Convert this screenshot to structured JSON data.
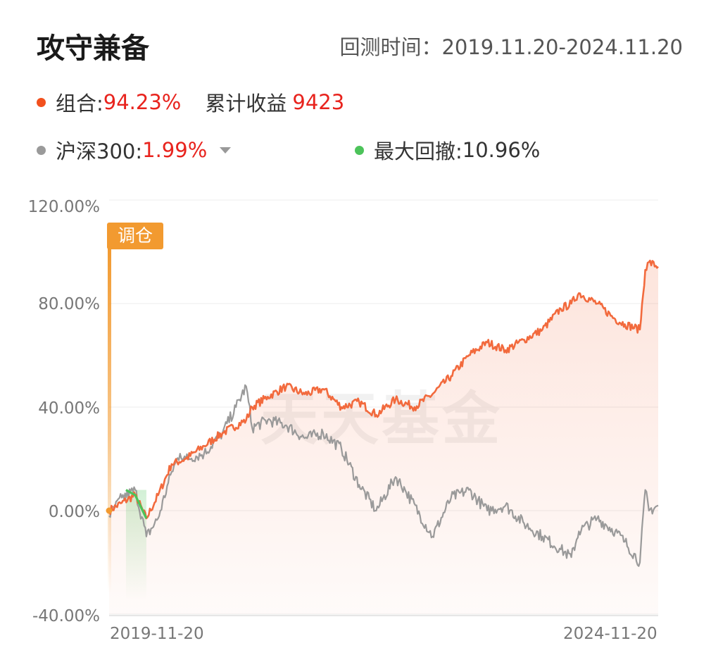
{
  "header": {
    "title": "攻守兼备",
    "period_label": "回测时间：2019.11.20-2024.11.20"
  },
  "legend": {
    "portfolio_label": "组合:",
    "portfolio_value": "94.23%",
    "cumulative_label": "累计收益",
    "cumulative_value": "9423",
    "benchmark_label": "沪深300:",
    "benchmark_value": "1.99%",
    "drawdown_label": "最大回撤:",
    "drawdown_value": "10.96%"
  },
  "colors": {
    "portfolio": "#f26a3d",
    "benchmark": "#9a9a9a",
    "drawdown": "#4cc35a",
    "rebalance": "#f29a30",
    "value_red": "#e8231d"
  },
  "badge_label": "调仓",
  "watermark": "天天基金",
  "chart_data": {
    "type": "line",
    "x_start": "2019-11-20",
    "x_end": "2024-11-20",
    "xticks": [
      "2019-11-20",
      "2024-11-20"
    ],
    "ylim": [
      -40,
      120
    ],
    "yticks": [
      120,
      80,
      40,
      0,
      -40
    ],
    "ytick_labels": [
      "120.00%",
      "80.00%",
      "40.00%",
      "0.00%",
      "-40.00%"
    ],
    "grid": true,
    "series": [
      {
        "name": "组合",
        "x": [
          "2019-11-20",
          "2020-01-01",
          "2020-02-15",
          "2020-03-23",
          "2020-05-01",
          "2020-06-15",
          "2020-08-01",
          "2020-10-01",
          "2020-12-01",
          "2021-02-18",
          "2021-03-10",
          "2021-05-01",
          "2021-07-01",
          "2021-09-01",
          "2021-11-01",
          "2022-01-01",
          "2022-03-01",
          "2022-04-27",
          "2022-06-30",
          "2022-09-01",
          "2022-10-31",
          "2023-01-01",
          "2023-03-01",
          "2023-05-01",
          "2023-07-01",
          "2023-09-01",
          "2023-11-01",
          "2024-01-01",
          "2024-02-05",
          "2024-03-01",
          "2024-05-01",
          "2024-06-30",
          "2024-08-01",
          "2024-09-20",
          "2024-10-08",
          "2024-10-20",
          "2024-11-20"
        ],
        "values": [
          0,
          3,
          6,
          -3,
          6,
          18,
          20,
          25,
          30,
          35,
          40,
          44,
          48,
          45,
          47,
          40,
          42,
          37,
          43,
          40,
          45,
          52,
          60,
          65,
          62,
          66,
          70,
          78,
          80,
          84,
          80,
          74,
          72,
          70,
          93,
          96,
          94.23
        ]
      },
      {
        "name": "沪深300",
        "x": [
          "2019-11-20",
          "2020-01-01",
          "2020-02-15",
          "2020-03-23",
          "2020-05-01",
          "2020-06-15",
          "2020-07-13",
          "2020-08-01",
          "2020-10-01",
          "2020-12-01",
          "2021-01-15",
          "2021-02-18",
          "2021-03-10",
          "2021-05-01",
          "2021-07-01",
          "2021-09-01",
          "2021-11-01",
          "2022-01-01",
          "2022-03-01",
          "2022-04-27",
          "2022-06-30",
          "2022-08-01",
          "2022-10-31",
          "2023-01-01",
          "2023-03-01",
          "2023-05-01",
          "2023-07-01",
          "2023-09-01",
          "2023-11-01",
          "2024-01-01",
          "2024-02-05",
          "2024-03-01",
          "2024-05-01",
          "2024-06-30",
          "2024-08-01",
          "2024-09-20",
          "2024-10-08",
          "2024-10-20",
          "2024-11-20"
        ],
        "values": [
          -2,
          5,
          8,
          -10,
          -3,
          15,
          22,
          20,
          22,
          30,
          40,
          48,
          32,
          35,
          33,
          28,
          30,
          24,
          10,
          0,
          13,
          8,
          -10,
          5,
          8,
          0,
          2,
          -5,
          -10,
          -15,
          -18,
          -8,
          -3,
          -8,
          -12,
          -20,
          8,
          0,
          1.99
        ]
      }
    ],
    "drawdown_segment": {
      "x": [
        "2020-01-15",
        "2020-02-15",
        "2020-03-23"
      ],
      "values": [
        8,
        6,
        -3
      ]
    }
  }
}
